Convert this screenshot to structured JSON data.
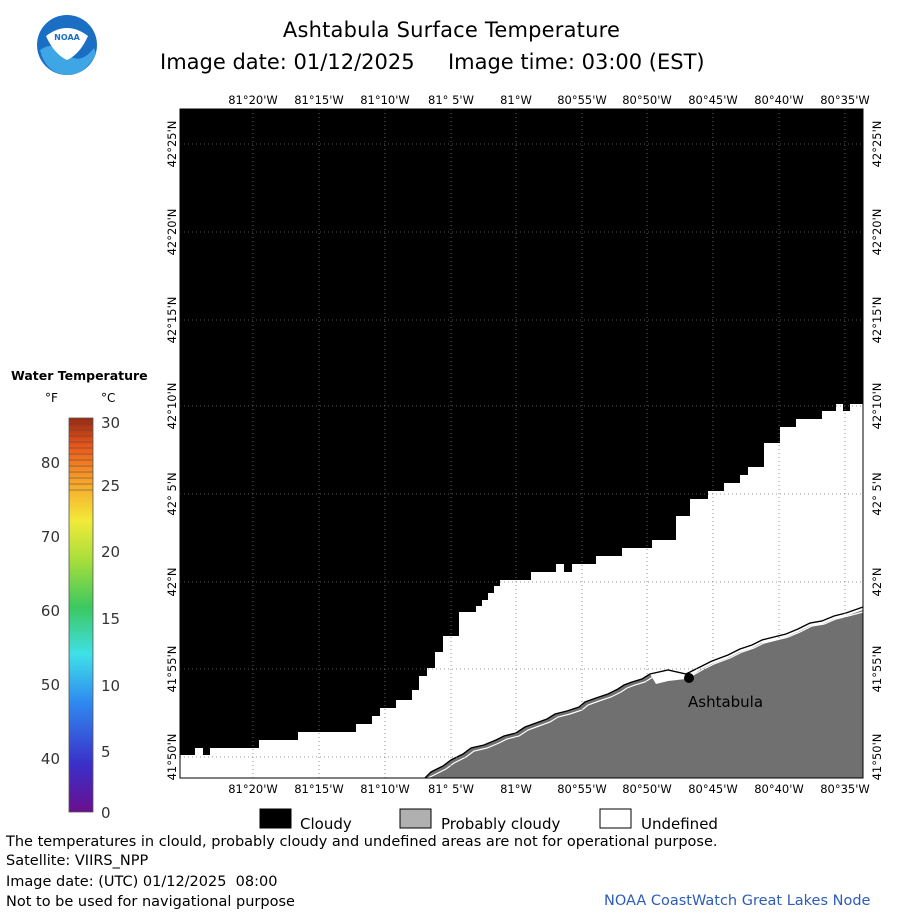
{
  "header": {
    "title": "Ashtabula Surface Temperature",
    "subtitle": "Image date: 01/12/2025     Image time: 03:00 (EST)",
    "logo_text": "NOAA"
  },
  "map": {
    "lon_labels": [
      "81°20'W",
      "81°15'W",
      "81°10'W",
      "81° 5'W",
      "81°W",
      "80°55'W",
      "80°50'W",
      "80°45'W",
      "80°40'W",
      "80°35'W"
    ],
    "lat_labels": [
      "42°25'N",
      "42°20'N",
      "42°15'N",
      "42°10'N",
      "42° 5'N",
      "42°N",
      "41°55'N",
      "41°50'N"
    ],
    "city": "Ashtabula",
    "colors": {
      "cloudy": "#000000",
      "land": "#6e6e6e",
      "undefined": "#ffffff",
      "grid": "#666666"
    }
  },
  "legend": {
    "title": "Water Temperature",
    "unit_f": "°F",
    "unit_c": "°C",
    "f_ticks": [
      "80",
      "70",
      "60",
      "50",
      "40"
    ],
    "c_ticks": [
      "30",
      "25",
      "20",
      "15",
      "10",
      "5",
      "0"
    ]
  },
  "key": {
    "cloudy": "Cloudy",
    "probably_cloudy": "Probably cloudy",
    "undefined": "Undefined"
  },
  "footer": {
    "note": "The temperatures in clould, probably cloudy and undefined areas are not for operational purpose.",
    "satellite": "Satellite: VIIRS_NPP",
    "utc_date": "Image date: (UTC) 01/12/2025  08:00",
    "nav_warning": "Not to be used for navigational purpose",
    "credit": "NOAA CoastWatch Great Lakes Node"
  }
}
